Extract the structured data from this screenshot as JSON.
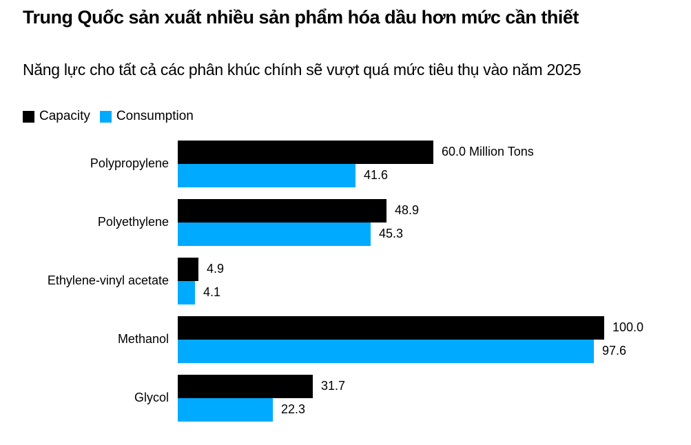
{
  "title": "Trung Quốc sản xuất nhiều sản phẩm hóa dầu hơn mức cần thiết",
  "subtitle": "Năng lực cho tất cả các phân khúc chính sẽ vượt quá mức tiêu thụ vào năm 2025",
  "legend": [
    {
      "label": "Capacity",
      "color": "#000000"
    },
    {
      "label": "Consumption",
      "color": "#00aaff"
    }
  ],
  "chart_data": {
    "type": "bar",
    "orientation": "horizontal",
    "title": "Trung Quốc sản xuất nhiều sản phẩm hóa dầu hơn mức cần thiết",
    "subtitle": "Năng lực cho tất cả các phân khúc chính sẽ vượt quá mức tiêu thụ vào năm 2025",
    "unit": "Million Tons",
    "categories": [
      "Polypropylene",
      "Polyethylene",
      "Ethylene-vinyl acetate",
      "Methanol",
      "Glycol"
    ],
    "series": [
      {
        "name": "Capacity",
        "color": "#000000",
        "values": [
          60.0,
          48.9,
          4.9,
          100.0,
          31.7
        ],
        "labels": [
          "60.0 Million Tons",
          "48.9",
          "4.9",
          "100.0",
          "31.7"
        ]
      },
      {
        "name": "Consumption",
        "color": "#00aaff",
        "values": [
          41.6,
          45.3,
          4.1,
          97.6,
          22.3
        ],
        "labels": [
          "41.6",
          "45.3",
          "4.1",
          "97.6",
          "22.3"
        ]
      }
    ],
    "xlabel": "",
    "ylabel": "",
    "xlim": [
      0,
      100
    ],
    "grid": false,
    "legend_position": "top-left"
  }
}
